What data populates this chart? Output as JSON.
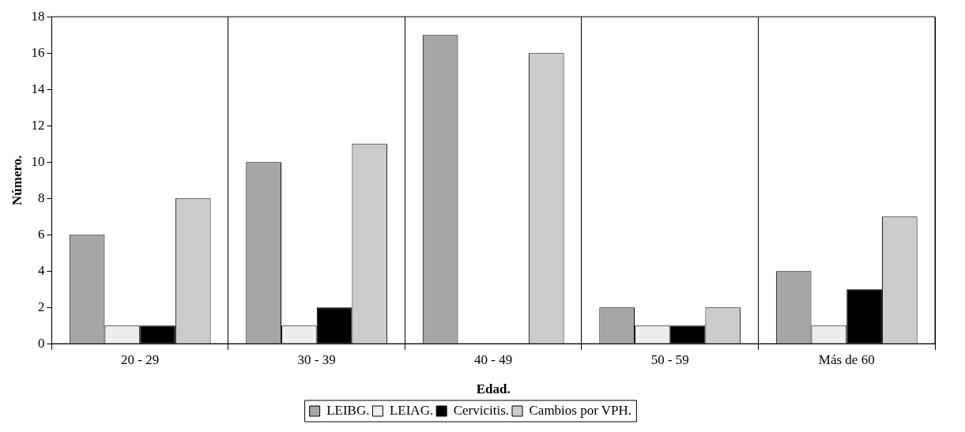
{
  "chart_data": {
    "type": "bar",
    "xlabel": "Edad.",
    "ylabel": "Número.",
    "categories": [
      "20 - 29",
      "30 - 39",
      "40 - 49",
      "50 - 59",
      "Más de 60"
    ],
    "series": [
      {
        "name": "LEIBG.",
        "color": "#a6a6a6",
        "values": [
          6,
          10,
          17,
          2,
          4
        ]
      },
      {
        "name": "LEIAG.",
        "color": "#eeeeee",
        "values": [
          1,
          1,
          0,
          1,
          1
        ]
      },
      {
        "name": "Cervicitis.",
        "color": "#000000",
        "values": [
          1,
          2,
          0,
          1,
          3
        ]
      },
      {
        "name": "Cambios por VPH.",
        "color": "#cccccc",
        "values": [
          8,
          11,
          16,
          2,
          7
        ]
      }
    ],
    "ylim": [
      0,
      18
    ],
    "yticks": [
      0,
      2,
      4,
      6,
      8,
      10,
      12,
      14,
      16,
      18
    ],
    "grid": "x",
    "legend": "bottom"
  }
}
